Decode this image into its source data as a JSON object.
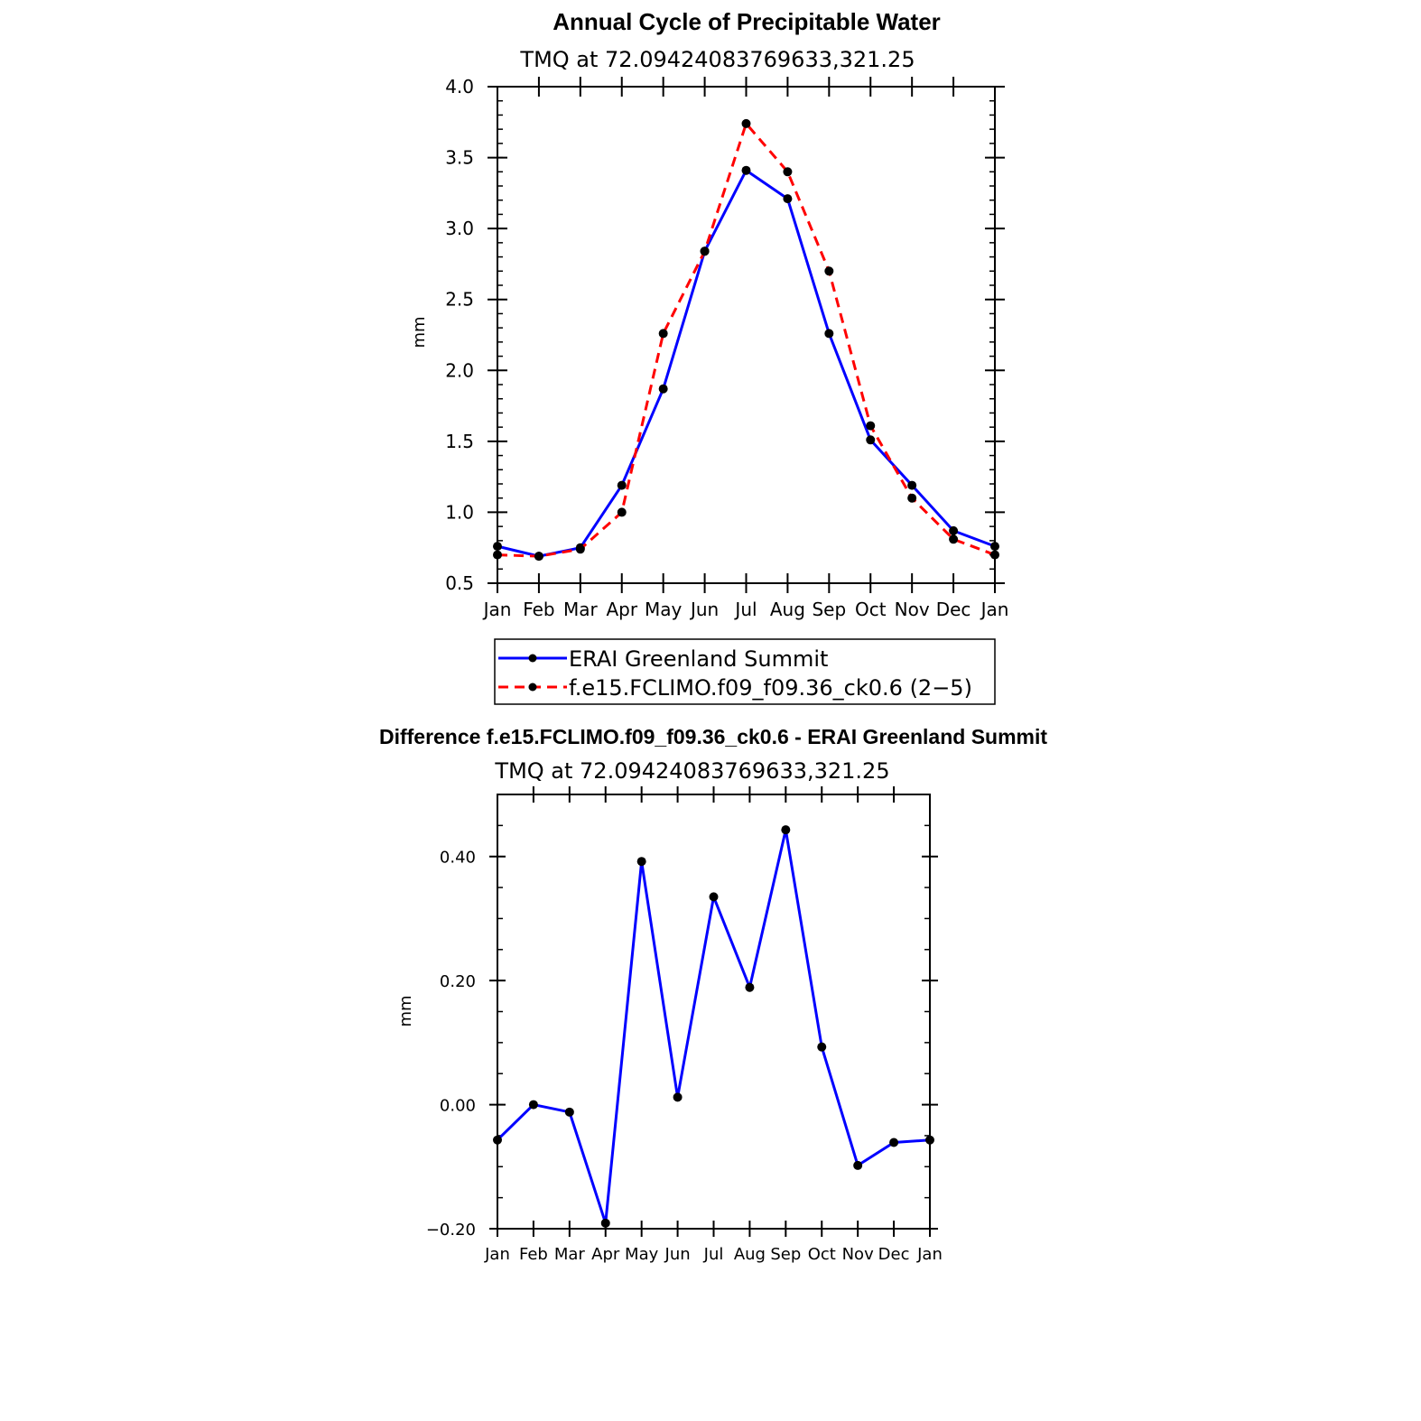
{
  "chart_data": [
    {
      "type": "line",
      "title": "Annual Cycle of Precipitable Water",
      "subtitle": "TMQ at 72.09424083769633,321.25",
      "xlabel": "",
      "ylabel": "mm",
      "categories": [
        "Jan",
        "Feb",
        "Mar",
        "Apr",
        "May",
        "Jun",
        "Jul",
        "Aug",
        "Sep",
        "Oct",
        "Nov",
        "Dec",
        "Jan"
      ],
      "ylim": [
        0.5,
        4.0
      ],
      "yticks": [
        0.5,
        1.0,
        1.5,
        2.0,
        2.5,
        3.0,
        3.5,
        4.0
      ],
      "yticklabels": [
        "0.5",
        "1.0",
        "1.5",
        "2.0",
        "2.5",
        "3.0",
        "3.5",
        "4.0"
      ],
      "grid": false,
      "legend_position": "bottom",
      "series": [
        {
          "name": "ERAI Greenland Summit",
          "color": "#0000ff",
          "style": "solid",
          "values": [
            0.76,
            0.69,
            0.75,
            1.19,
            1.87,
            2.84,
            3.41,
            3.21,
            2.26,
            1.51,
            1.19,
            0.87,
            0.76
          ]
        },
        {
          "name": "f.e15.FCLIMO.f09_f09.36_ck0.6 (2−5)",
          "color": "#ff0000",
          "style": "dashed",
          "values": [
            0.7,
            0.69,
            0.74,
            1.0,
            2.26,
            2.84,
            3.74,
            3.4,
            2.7,
            1.61,
            1.1,
            0.81,
            0.7
          ]
        }
      ]
    },
    {
      "type": "line",
      "title": "Difference f.e15.FCLIMO.f09_f09.36_ck0.6 - ERAI Greenland Summit",
      "subtitle": "TMQ at 72.09424083769633,321.25",
      "xlabel": "",
      "ylabel": "mm",
      "categories": [
        "Jan",
        "Feb",
        "Mar",
        "Apr",
        "May",
        "Jun",
        "Jul",
        "Aug",
        "Sep",
        "Oct",
        "Nov",
        "Dec",
        "Jan"
      ],
      "ylim": [
        -0.2,
        0.5
      ],
      "yticks": [
        -0.2,
        0.0,
        0.2,
        0.4
      ],
      "yticklabels": [
        "−0.20",
        "0.00",
        "0.20",
        "0.40"
      ],
      "grid": false,
      "series": [
        {
          "name": "",
          "color": "#0000ff",
          "style": "solid",
          "values": [
            -0.057,
            0.0,
            -0.012,
            -0.191,
            0.392,
            0.012,
            0.335,
            0.189,
            0.443,
            0.093,
            -0.098,
            -0.061,
            -0.057
          ]
        }
      ]
    }
  ]
}
